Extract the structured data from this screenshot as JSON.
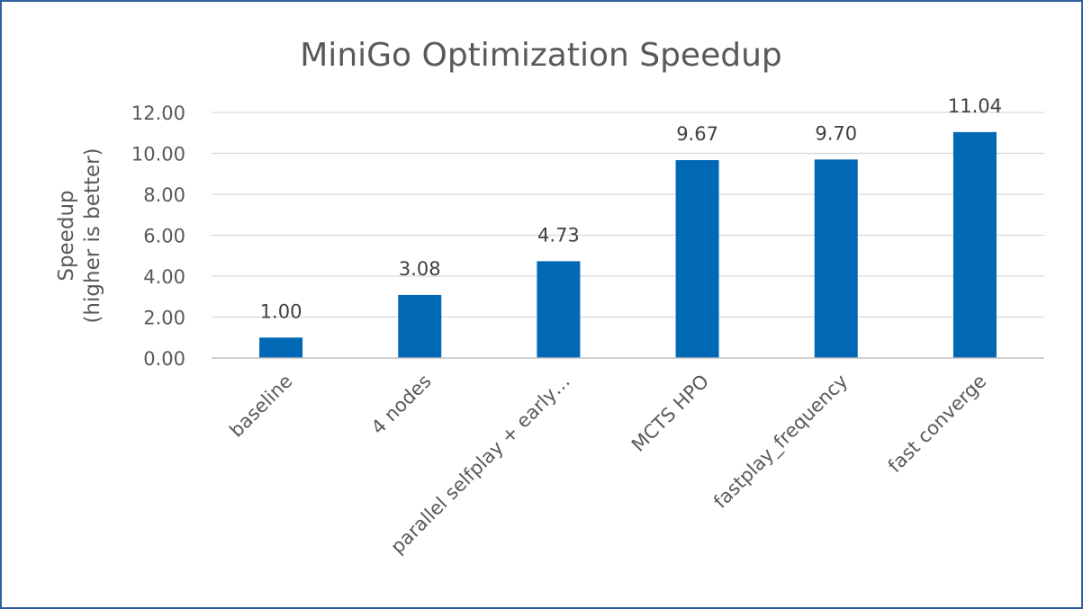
{
  "colors": {
    "bar": "#0068b5",
    "frame": "#2f5f9e",
    "text": "#595959",
    "grid": "#d9d9d9"
  },
  "chart_data": {
    "type": "bar",
    "title": "MiniGo Optimization Speedup",
    "ylabel_lines": [
      "Speedup",
      "(higher is better)"
    ],
    "xlabel": "",
    "categories": [
      "baseline",
      "4 nodes",
      "parallel selfplay + early…",
      "MCTS HPO",
      "fastplay_frequency",
      "fast converge"
    ],
    "values": [
      1.0,
      3.08,
      4.73,
      9.67,
      9.7,
      11.04
    ],
    "data_labels": [
      "1.00",
      "3.08",
      "4.73",
      "9.67",
      "9.70",
      "11.04"
    ],
    "ylim": [
      0,
      12
    ],
    "yticks": [
      "0.00",
      "2.00",
      "4.00",
      "6.00",
      "8.00",
      "10.00",
      "12.00"
    ],
    "grid": true,
    "legend": "none"
  }
}
